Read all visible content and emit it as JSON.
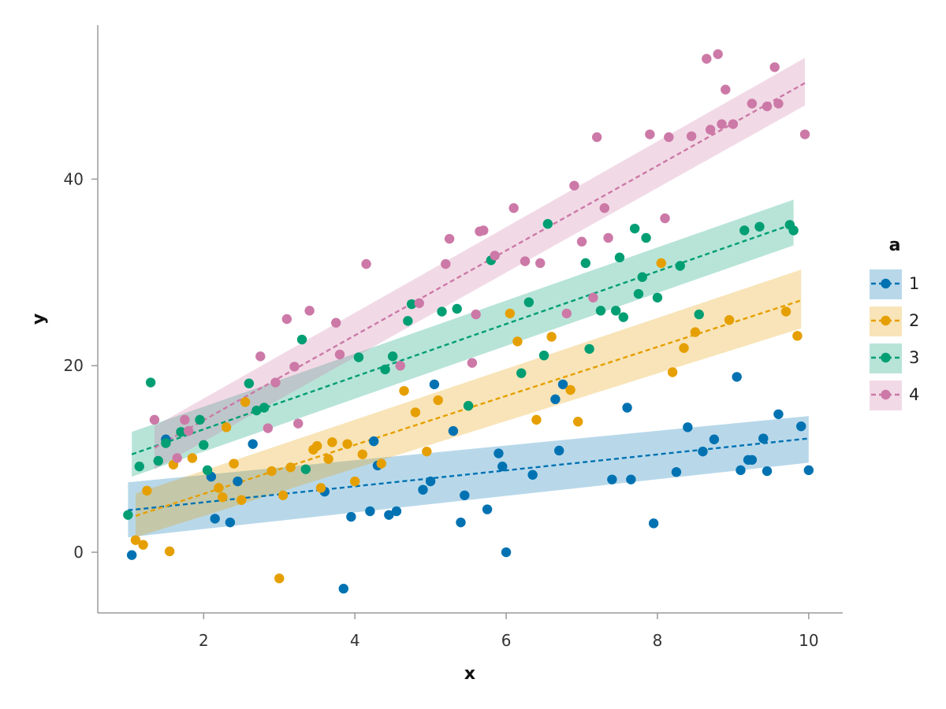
{
  "chart_data": {
    "type": "scatter",
    "title": "",
    "xlabel": "x",
    "ylabel": "y",
    "xlim": [
      0.6,
      10.45
    ],
    "ylim": [
      -6.5,
      56.5
    ],
    "x_ticks": [
      2,
      4,
      6,
      8,
      10
    ],
    "y_ticks": [
      0,
      20,
      40
    ],
    "grid": false,
    "legend": {
      "title": "a",
      "placement": "right"
    },
    "series": [
      {
        "name": "1",
        "color": "#0072B2",
        "fit": {
          "x0": 1.0,
          "x1": 10.0,
          "y0": 4.5,
          "y1": 12.2,
          "lower": [
            1.6,
            9.6
          ],
          "upper": [
            7.5,
            14.6
          ]
        },
        "points": [
          [
            1.05,
            -0.3
          ],
          [
            1.5,
            12.1
          ],
          [
            2.1,
            8.1
          ],
          [
            2.15,
            3.6
          ],
          [
            2.35,
            3.2
          ],
          [
            2.45,
            7.6
          ],
          [
            2.65,
            11.6
          ],
          [
            3.6,
            6.5
          ],
          [
            3.85,
            -3.9
          ],
          [
            3.95,
            3.8
          ],
          [
            4.2,
            4.4
          ],
          [
            4.25,
            11.9
          ],
          [
            4.3,
            9.3
          ],
          [
            4.45,
            4.0
          ],
          [
            4.55,
            4.4
          ],
          [
            4.9,
            6.7
          ],
          [
            5.0,
            7.6
          ],
          [
            5.05,
            18.0
          ],
          [
            5.3,
            13.0
          ],
          [
            5.4,
            3.2
          ],
          [
            5.45,
            6.1
          ],
          [
            5.75,
            4.6
          ],
          [
            5.9,
            10.6
          ],
          [
            5.95,
            9.2
          ],
          [
            6.0,
            0.0
          ],
          [
            6.35,
            8.3
          ],
          [
            6.65,
            16.4
          ],
          [
            6.7,
            10.9
          ],
          [
            6.75,
            18.0
          ],
          [
            7.4,
            7.8
          ],
          [
            7.6,
            15.5
          ],
          [
            7.65,
            7.8
          ],
          [
            7.95,
            3.1
          ],
          [
            8.25,
            8.6
          ],
          [
            8.4,
            13.4
          ],
          [
            8.6,
            10.8
          ],
          [
            8.75,
            12.1
          ],
          [
            9.05,
            18.8
          ],
          [
            9.1,
            8.8
          ],
          [
            9.2,
            9.9
          ],
          [
            9.25,
            9.9
          ],
          [
            9.4,
            12.2
          ],
          [
            9.45,
            8.7
          ],
          [
            9.6,
            14.8
          ],
          [
            9.9,
            13.5
          ],
          [
            10.0,
            8.8
          ]
        ]
      },
      {
        "name": "2",
        "color": "#E69F00",
        "fit": {
          "x0": 1.1,
          "x1": 9.9,
          "y0": 3.9,
          "y1": 27.0,
          "lower": [
            1.6,
            24.0
          ],
          "upper": [
            6.3,
            30.3
          ]
        },
        "points": [
          [
            1.1,
            1.3
          ],
          [
            1.2,
            0.8
          ],
          [
            1.25,
            6.6
          ],
          [
            1.55,
            0.1
          ],
          [
            1.6,
            9.4
          ],
          [
            1.85,
            10.1
          ],
          [
            2.2,
            6.9
          ],
          [
            2.25,
            5.9
          ],
          [
            2.3,
            13.4
          ],
          [
            2.4,
            9.5
          ],
          [
            2.5,
            5.6
          ],
          [
            2.55,
            16.1
          ],
          [
            2.9,
            8.7
          ],
          [
            3.0,
            -2.8
          ],
          [
            3.05,
            6.1
          ],
          [
            3.15,
            9.1
          ],
          [
            3.45,
            11.0
          ],
          [
            3.5,
            11.4
          ],
          [
            3.55,
            6.9
          ],
          [
            3.65,
            10.0
          ],
          [
            3.7,
            11.8
          ],
          [
            3.9,
            11.6
          ],
          [
            4.0,
            7.6
          ],
          [
            4.1,
            10.5
          ],
          [
            4.35,
            9.5
          ],
          [
            4.65,
            17.3
          ],
          [
            4.8,
            15.0
          ],
          [
            4.95,
            10.8
          ],
          [
            5.1,
            16.3
          ],
          [
            5.5,
            15.7
          ],
          [
            6.05,
            25.6
          ],
          [
            6.15,
            22.6
          ],
          [
            6.4,
            14.2
          ],
          [
            6.6,
            23.1
          ],
          [
            6.85,
            17.4
          ],
          [
            6.95,
            14.0
          ],
          [
            8.05,
            31.0
          ],
          [
            8.2,
            19.3
          ],
          [
            8.35,
            21.9
          ],
          [
            8.5,
            23.6
          ],
          [
            8.95,
            24.9
          ],
          [
            9.7,
            25.8
          ],
          [
            9.85,
            23.2
          ]
        ]
      },
      {
        "name": "3",
        "color": "#009E73",
        "fit": {
          "x0": 1.05,
          "x1": 9.8,
          "y0": 10.5,
          "y1": 35.2,
          "lower": [
            8.1,
            32.9
          ],
          "upper": [
            12.9,
            37.8
          ]
        },
        "points": [
          [
            1.0,
            4.0
          ],
          [
            1.15,
            9.2
          ],
          [
            1.3,
            18.2
          ],
          [
            1.4,
            9.8
          ],
          [
            1.5,
            11.7
          ],
          [
            1.7,
            12.9
          ],
          [
            1.95,
            14.2
          ],
          [
            2.0,
            11.5
          ],
          [
            2.05,
            8.8
          ],
          [
            2.6,
            18.1
          ],
          [
            2.7,
            15.2
          ],
          [
            2.8,
            15.5
          ],
          [
            3.3,
            22.8
          ],
          [
            3.35,
            8.9
          ],
          [
            4.05,
            20.9
          ],
          [
            4.4,
            19.6
          ],
          [
            4.5,
            21.0
          ],
          [
            4.7,
            24.8
          ],
          [
            4.75,
            26.6
          ],
          [
            5.15,
            25.8
          ],
          [
            5.35,
            26.1
          ],
          [
            5.5,
            15.7
          ],
          [
            5.8,
            31.3
          ],
          [
            6.2,
            19.2
          ],
          [
            6.3,
            26.8
          ],
          [
            6.5,
            21.1
          ],
          [
            6.55,
            35.2
          ],
          [
            7.05,
            31.0
          ],
          [
            7.1,
            21.8
          ],
          [
            7.25,
            25.9
          ],
          [
            7.45,
            25.9
          ],
          [
            7.5,
            31.6
          ],
          [
            7.55,
            25.2
          ],
          [
            7.7,
            34.7
          ],
          [
            7.75,
            27.7
          ],
          [
            7.8,
            29.5
          ],
          [
            7.85,
            33.7
          ],
          [
            8.0,
            27.3
          ],
          [
            8.3,
            30.7
          ],
          [
            8.55,
            25.5
          ],
          [
            9.15,
            34.5
          ],
          [
            9.35,
            34.9
          ],
          [
            9.75,
            35.1
          ],
          [
            9.8,
            34.5
          ]
        ]
      },
      {
        "name": "4",
        "color": "#CC79A7",
        "fit": {
          "x0": 1.35,
          "x1": 9.95,
          "y0": 11.2,
          "y1": 50.3,
          "lower": [
            8.9,
            47.9
          ],
          "upper": [
            13.5,
            53.0
          ]
        },
        "points": [
          [
            1.35,
            14.2
          ],
          [
            1.65,
            10.1
          ],
          [
            1.75,
            14.2
          ],
          [
            1.8,
            13.0
          ],
          [
            2.75,
            21.0
          ],
          [
            2.85,
            13.3
          ],
          [
            2.95,
            18.2
          ],
          [
            3.1,
            25.0
          ],
          [
            3.2,
            19.9
          ],
          [
            3.25,
            13.8
          ],
          [
            3.4,
            25.9
          ],
          [
            3.75,
            24.6
          ],
          [
            3.8,
            21.2
          ],
          [
            4.15,
            30.9
          ],
          [
            4.6,
            20.0
          ],
          [
            4.85,
            26.7
          ],
          [
            5.2,
            30.9
          ],
          [
            5.25,
            33.6
          ],
          [
            5.55,
            20.3
          ],
          [
            5.6,
            25.5
          ],
          [
            5.65,
            34.4
          ],
          [
            5.7,
            34.5
          ],
          [
            5.85,
            31.8
          ],
          [
            6.1,
            36.9
          ],
          [
            6.25,
            31.2
          ],
          [
            6.45,
            31.0
          ],
          [
            6.8,
            25.6
          ],
          [
            6.9,
            39.3
          ],
          [
            7.0,
            33.3
          ],
          [
            7.15,
            27.3
          ],
          [
            7.2,
            44.5
          ],
          [
            7.3,
            36.9
          ],
          [
            7.35,
            33.7
          ],
          [
            7.9,
            44.8
          ],
          [
            8.1,
            35.8
          ],
          [
            8.15,
            44.5
          ],
          [
            8.45,
            44.6
          ],
          [
            8.65,
            52.9
          ],
          [
            8.7,
            45.3
          ],
          [
            8.8,
            53.4
          ],
          [
            8.85,
            45.9
          ],
          [
            8.9,
            49.6
          ],
          [
            9.0,
            45.9
          ],
          [
            9.25,
            48.1
          ],
          [
            9.45,
            47.8
          ],
          [
            9.55,
            52.0
          ],
          [
            9.6,
            48.1
          ],
          [
            9.95,
            44.8
          ]
        ]
      }
    ]
  }
}
